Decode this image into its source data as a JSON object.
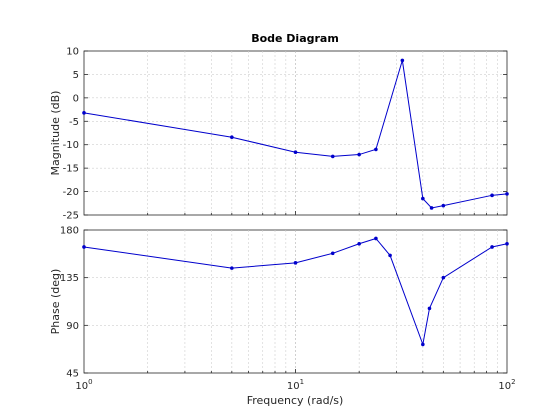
{
  "chart_data": {
    "type": "line",
    "title": "Bode Diagram",
    "xlabel": "Frequency  (rad/s)",
    "xscale": "log",
    "xlim": [
      1,
      100
    ],
    "x_ticks": [
      {
        "value": 1,
        "label": "10",
        "exp": "0"
      },
      {
        "value": 10,
        "label": "10",
        "exp": "1"
      },
      {
        "value": 100,
        "label": "10",
        "exp": "2"
      }
    ],
    "grid": true,
    "color": "#0000cc",
    "panels": [
      {
        "id": "magnitude",
        "ylabel": "Magnitude (dB)",
        "ylim": [
          -25,
          10
        ],
        "yticks": [
          10,
          5,
          0,
          -5,
          -10,
          -15,
          -20,
          -25
        ],
        "x": [
          1,
          5,
          10,
          15,
          20,
          24,
          32,
          40,
          44,
          50,
          85,
          100
        ],
        "y": [
          -3.2,
          -8.4,
          -11.6,
          -12.5,
          -12.1,
          -11,
          8,
          -21.5,
          -23.5,
          -23,
          -20.8,
          -20.5
        ]
      },
      {
        "id": "phase",
        "ylabel": "Phase (deg)",
        "ylim": [
          45,
          180
        ],
        "yticks": [
          180,
          135,
          90,
          45
        ],
        "x": [
          1,
          5,
          10,
          15,
          20,
          24,
          28,
          40,
          43,
          50,
          85,
          100
        ],
        "y": [
          164,
          144,
          149,
          158,
          167,
          172,
          156,
          72,
          106,
          135,
          164,
          167
        ]
      }
    ]
  }
}
